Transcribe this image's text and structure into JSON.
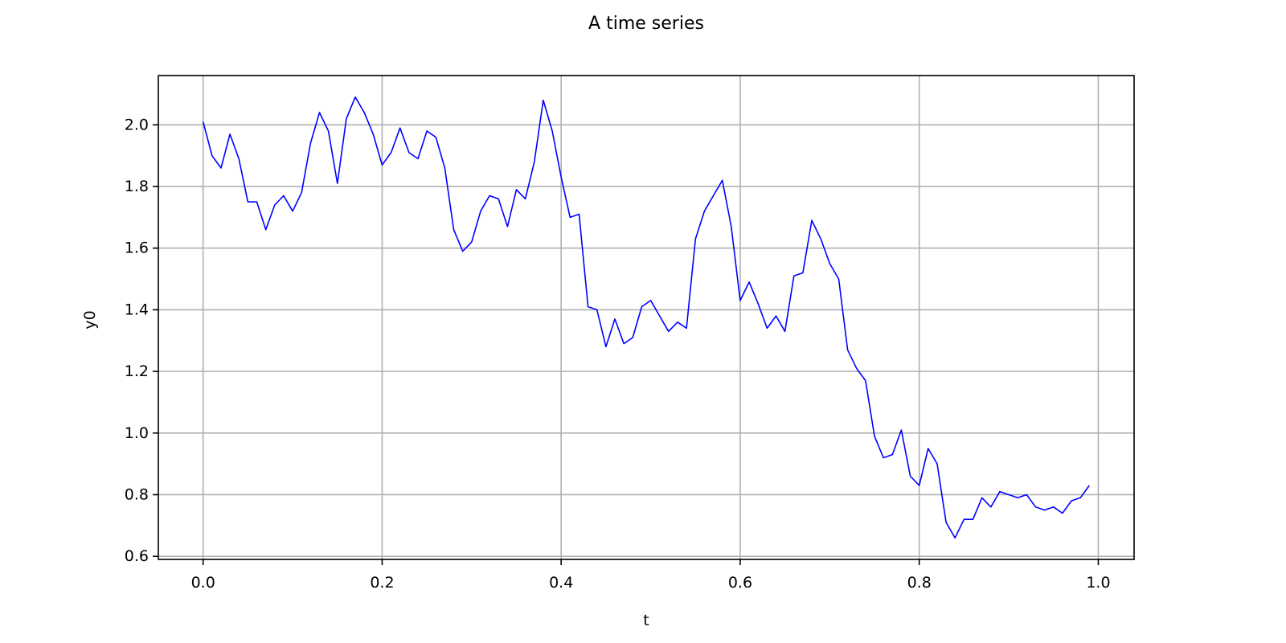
{
  "chart_data": {
    "type": "line",
    "title": "A time series",
    "xlabel": "t",
    "ylabel": "y0",
    "xlim": [
      -0.05,
      1.04
    ],
    "ylim": [
      0.59,
      2.16
    ],
    "xticks": [
      0.0,
      0.2,
      0.4,
      0.6,
      0.8,
      1.0
    ],
    "xtick_labels": [
      "0.0",
      "0.2",
      "0.4",
      "0.6",
      "0.8",
      "1.0"
    ],
    "yticks": [
      0.6,
      0.8,
      1.0,
      1.2,
      1.4,
      1.6,
      1.8,
      2.0
    ],
    "ytick_labels": [
      "0.6",
      "0.8",
      "1.0",
      "1.2",
      "1.4",
      "1.6",
      "1.8",
      "2.0"
    ],
    "grid": true,
    "legend": false,
    "colors": {
      "line": "#0000ff",
      "grid": "#b0b0b0",
      "axes": "#000000"
    },
    "series": [
      {
        "x": [
          0.0,
          0.01,
          0.02,
          0.03,
          0.04,
          0.05,
          0.06,
          0.07,
          0.08,
          0.09,
          0.1,
          0.11,
          0.12,
          0.13,
          0.14,
          0.15,
          0.16,
          0.17,
          0.18,
          0.19,
          0.2,
          0.21,
          0.22,
          0.23,
          0.24,
          0.25,
          0.26,
          0.27,
          0.28,
          0.29,
          0.3,
          0.31,
          0.32,
          0.33,
          0.34,
          0.35,
          0.36,
          0.37,
          0.38,
          0.39,
          0.4,
          0.41,
          0.42,
          0.43,
          0.44,
          0.45,
          0.46,
          0.47,
          0.48,
          0.49,
          0.5,
          0.51,
          0.52,
          0.53,
          0.54,
          0.55,
          0.56,
          0.57,
          0.58,
          0.59,
          0.6,
          0.61,
          0.62,
          0.63,
          0.64,
          0.65,
          0.66,
          0.67,
          0.68,
          0.69,
          0.7,
          0.71,
          0.72,
          0.73,
          0.74,
          0.75,
          0.76,
          0.77,
          0.78,
          0.79,
          0.8,
          0.81,
          0.82,
          0.83,
          0.84,
          0.85,
          0.86,
          0.87,
          0.88,
          0.89,
          0.9,
          0.91,
          0.92,
          0.93,
          0.94,
          0.95,
          0.96,
          0.97,
          0.98,
          0.99
        ],
        "y": [
          2.01,
          1.9,
          1.86,
          1.97,
          1.89,
          1.75,
          1.75,
          1.66,
          1.74,
          1.77,
          1.72,
          1.78,
          1.94,
          2.04,
          1.98,
          1.81,
          2.02,
          2.09,
          2.04,
          1.97,
          1.87,
          1.91,
          1.99,
          1.91,
          1.89,
          1.98,
          1.96,
          1.86,
          1.66,
          1.59,
          1.62,
          1.72,
          1.77,
          1.76,
          1.67,
          1.79,
          1.76,
          1.88,
          2.08,
          1.98,
          1.83,
          1.7,
          1.71,
          1.41,
          1.4,
          1.28,
          1.37,
          1.29,
          1.31,
          1.41,
          1.43,
          1.38,
          1.33,
          1.36,
          1.34,
          1.63,
          1.72,
          1.77,
          1.82,
          1.67,
          1.43,
          1.49,
          1.42,
          1.34,
          1.38,
          1.33,
          1.51,
          1.52,
          1.69,
          1.63,
          1.55,
          1.5,
          1.27,
          1.21,
          1.17,
          0.99,
          0.92,
          0.93,
          1.01,
          0.86,
          0.83,
          0.95,
          0.9,
          0.71,
          0.66,
          0.72,
          0.72,
          0.79,
          0.76,
          0.81,
          0.8,
          0.79,
          0.8,
          0.76,
          0.75,
          0.76,
          0.74,
          0.78,
          0.79,
          0.83
        ]
      }
    ]
  }
}
